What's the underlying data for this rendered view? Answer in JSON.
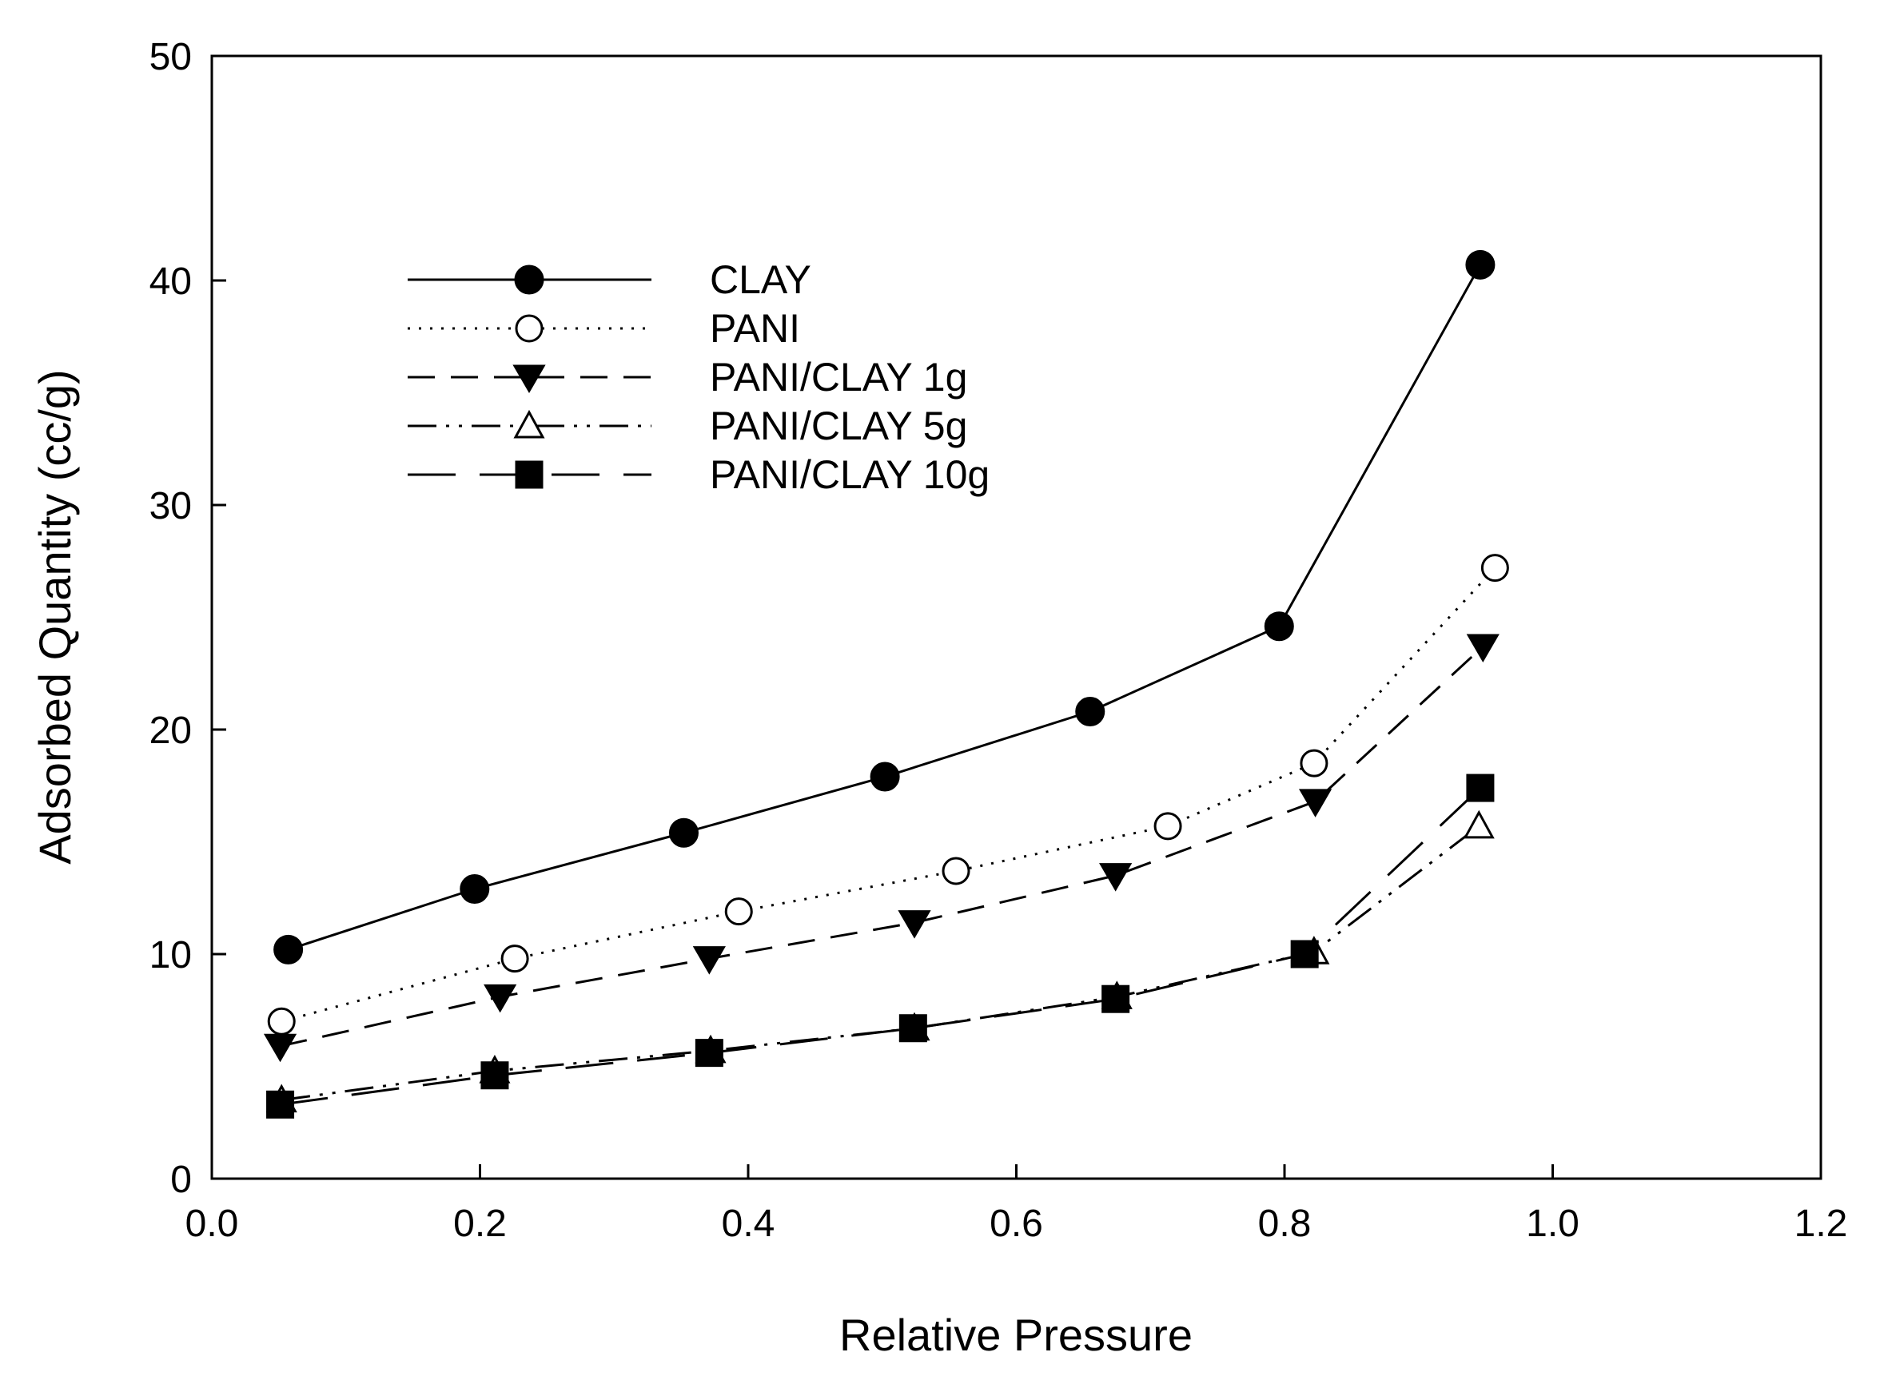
{
  "chart_data": {
    "type": "line",
    "title": "",
    "xlabel": "Relative Pressure",
    "ylabel": "Adsorbed Quantity (cc/g)",
    "xlim": [
      0.0,
      1.2
    ],
    "ylim": [
      0,
      50
    ],
    "xticks": [
      "0.0",
      "0.2",
      "0.4",
      "0.6",
      "0.8",
      "1.0",
      "1.2"
    ],
    "yticks": [
      "0",
      "10",
      "20",
      "30",
      "40",
      "50"
    ],
    "grid": false,
    "legend_position": "upper-left",
    "series": [
      {
        "name": "CLAY",
        "marker": "filled-circle",
        "dash": "solid",
        "x": [
          0.057,
          0.196,
          0.352,
          0.502,
          0.655,
          0.796,
          0.946
        ],
        "y": [
          10.2,
          12.9,
          15.4,
          17.9,
          20.8,
          24.6,
          40.7
        ]
      },
      {
        "name": "PANI",
        "marker": "open-circle",
        "dash": "dotted",
        "x": [
          0.052,
          0.226,
          0.393,
          0.555,
          0.713,
          0.822,
          0.957
        ],
        "y": [
          7.0,
          9.8,
          11.9,
          13.7,
          15.7,
          18.5,
          27.2
        ]
      },
      {
        "name": "PANI/CLAY 1g",
        "marker": "filled-triangle-down",
        "dash": "dashed",
        "x": [
          0.051,
          0.215,
          0.371,
          0.524,
          0.674,
          0.823,
          0.948
        ],
        "y": [
          5.9,
          8.1,
          9.8,
          11.4,
          13.5,
          16.8,
          23.7
        ]
      },
      {
        "name": "PANI/CLAY 5g",
        "marker": "open-triangle-up",
        "dash": "dash-dot-dot",
        "x": [
          0.052,
          0.211,
          0.372,
          0.524,
          0.675,
          0.822,
          0.945
        ],
        "y": [
          3.5,
          4.8,
          5.7,
          6.7,
          8.1,
          10.1,
          15.7
        ]
      },
      {
        "name": "PANI/CLAY 10g",
        "marker": "filled-square",
        "dash": "long-dash",
        "x": [
          0.051,
          0.211,
          0.371,
          0.523,
          0.674,
          0.815,
          0.946
        ],
        "y": [
          3.3,
          4.6,
          5.6,
          6.7,
          8.0,
          10.0,
          17.4
        ]
      }
    ]
  }
}
